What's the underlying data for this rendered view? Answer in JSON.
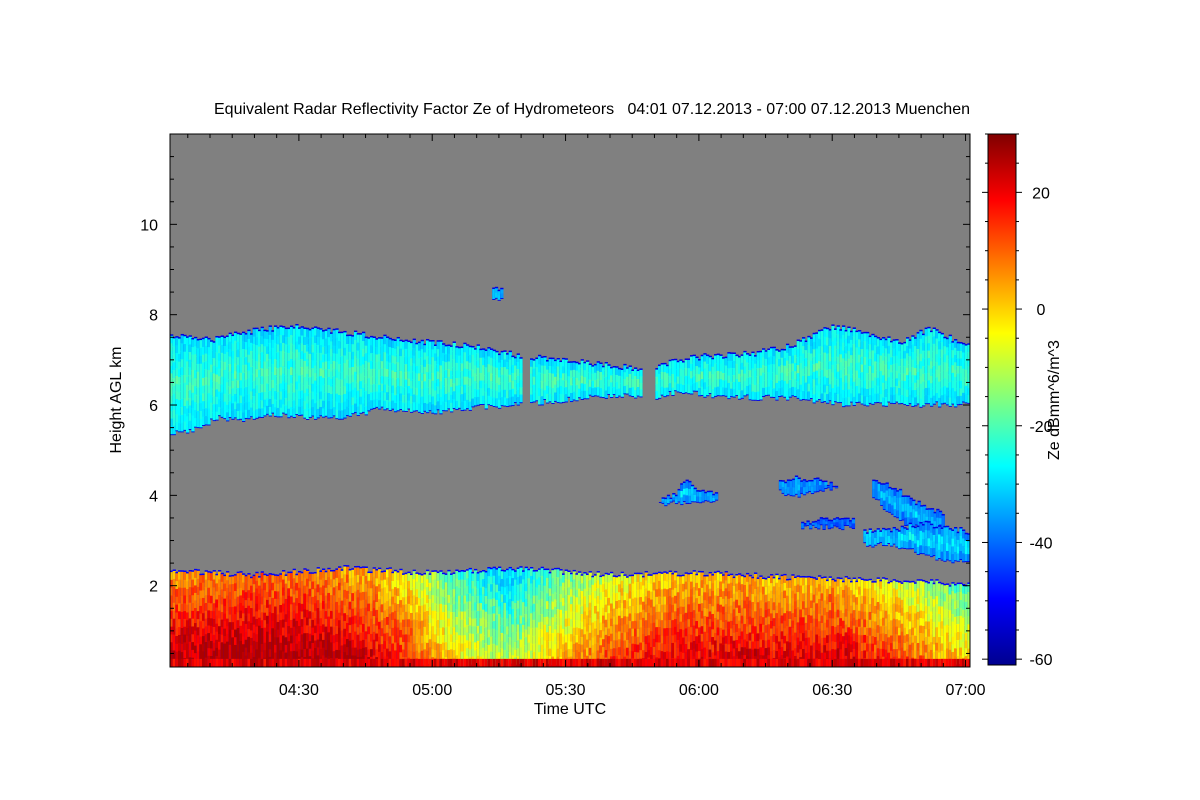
{
  "chart_data": {
    "type": "heatmap",
    "title": "Equivalent Radar Reflectivity Factor Ze of Hydrometeors   04:01 07.12.2013 - 07:00 07.12.2013 Muenchen",
    "xlabel": "Time UTC",
    "ylabel": "Height AGL km",
    "colorbar_label": "Ze dBmm^6/m^3",
    "background_color": "#808080",
    "colormap": "jet",
    "x_range_minutes_utc": [
      241,
      421
    ],
    "x_ticks": [
      {
        "value": 270,
        "label": "04:30"
      },
      {
        "value": 300,
        "label": "05:00"
      },
      {
        "value": 330,
        "label": "05:30"
      },
      {
        "value": 360,
        "label": "06:00"
      },
      {
        "value": 390,
        "label": "06:30"
      },
      {
        "value": 420,
        "label": "07:00"
      }
    ],
    "ylim": [
      0.2,
      12.0
    ],
    "y_ticks": [
      {
        "value": 2,
        "label": "2"
      },
      {
        "value": 4,
        "label": "4"
      },
      {
        "value": 6,
        "label": "6"
      },
      {
        "value": 8,
        "label": "8"
      },
      {
        "value": 10,
        "label": "10"
      }
    ],
    "color_range": [
      -61,
      30
    ],
    "colorbar_ticks": [
      {
        "value": 20,
        "label": "20"
      },
      {
        "value": 0,
        "label": "0"
      },
      {
        "value": -20,
        "label": "-20"
      },
      {
        "value": -40,
        "label": "-40"
      },
      {
        "value": -60,
        "label": "-60"
      }
    ],
    "layers": [
      {
        "name": "upper cloud layer",
        "start": 241,
        "end": 421,
        "top": [
          [
            241,
            7.55
          ],
          [
            250,
            7.45
          ],
          [
            262,
            7.7
          ],
          [
            270,
            7.75
          ],
          [
            278,
            7.65
          ],
          [
            290,
            7.5
          ],
          [
            300,
            7.4
          ],
          [
            310,
            7.3
          ],
          [
            320,
            7.1
          ],
          [
            330,
            7.0
          ],
          [
            340,
            6.9
          ],
          [
            348,
            6.8
          ],
          [
            355,
            7.0
          ],
          [
            362,
            7.1
          ],
          [
            372,
            7.15
          ],
          [
            380,
            7.3
          ],
          [
            390,
            7.75
          ],
          [
            398,
            7.6
          ],
          [
            405,
            7.4
          ],
          [
            412,
            7.7
          ],
          [
            421,
            7.3
          ]
        ],
        "bottom": [
          [
            241,
            5.35
          ],
          [
            246,
            5.45
          ],
          [
            252,
            5.7
          ],
          [
            258,
            5.65
          ],
          [
            264,
            5.8
          ],
          [
            272,
            5.7
          ],
          [
            280,
            5.7
          ],
          [
            288,
            5.9
          ],
          [
            295,
            5.85
          ],
          [
            302,
            5.85
          ],
          [
            310,
            5.95
          ],
          [
            320,
            6.0
          ],
          [
            330,
            6.1
          ],
          [
            340,
            6.2
          ],
          [
            350,
            6.15
          ],
          [
            356,
            6.3
          ],
          [
            362,
            6.2
          ],
          [
            372,
            6.15
          ],
          [
            382,
            6.15
          ],
          [
            392,
            6.0
          ],
          [
            402,
            6.0
          ],
          [
            412,
            6.0
          ],
          [
            421,
            6.0
          ]
        ],
        "gaps": [
          [
            347.5,
            350.0
          ],
          [
            320.0,
            322.0
          ]
        ],
        "ze": [
          -34,
          -20
        ]
      },
      {
        "name": "boundary layer",
        "start": 241,
        "end": 421,
        "top": [
          [
            241,
            2.35
          ],
          [
            260,
            2.25
          ],
          [
            280,
            2.4
          ],
          [
            300,
            2.3
          ],
          [
            320,
            2.4
          ],
          [
            340,
            2.25
          ],
          [
            360,
            2.3
          ],
          [
            380,
            2.2
          ],
          [
            400,
            2.15
          ],
          [
            421,
            2.05
          ]
        ],
        "bottom": [
          [
            241,
            0.2
          ],
          [
            421,
            0.2
          ]
        ],
        "ze": [
          -24,
          18
        ],
        "ze_profile": [
          [
            241,
            12
          ],
          [
            260,
            16
          ],
          [
            275,
            14
          ],
          [
            285,
            10
          ],
          [
            295,
            2
          ],
          [
            305,
            -14
          ],
          [
            312,
            -20
          ],
          [
            318,
            -24
          ],
          [
            324,
            -16
          ],
          [
            330,
            -10
          ],
          [
            340,
            0
          ],
          [
            350,
            6
          ],
          [
            360,
            8
          ],
          [
            370,
            9
          ],
          [
            380,
            8
          ],
          [
            390,
            10
          ],
          [
            400,
            4
          ],
          [
            410,
            -4
          ],
          [
            421,
            -14
          ]
        ]
      },
      {
        "name": "mid-level cloud 1",
        "start": 351,
        "end": 364,
        "top": [
          [
            351,
            3.9
          ],
          [
            355,
            4.05
          ],
          [
            357,
            4.35
          ],
          [
            360,
            4.1
          ],
          [
            364,
            4.05
          ]
        ],
        "bottom": [
          [
            351,
            3.8
          ],
          [
            364,
            3.85
          ]
        ],
        "ze": [
          -44,
          -28
        ]
      },
      {
        "name": "mid-level cloud 2",
        "start": 378,
        "end": 391,
        "top": [
          [
            378,
            4.3
          ],
          [
            382,
            4.4
          ],
          [
            386,
            4.35
          ],
          [
            391,
            4.25
          ]
        ],
        "bottom": [
          [
            378,
            4.1
          ],
          [
            382,
            3.95
          ],
          [
            386,
            4.05
          ],
          [
            391,
            4.15
          ]
        ],
        "ze": [
          -46,
          -32
        ]
      },
      {
        "name": "mid-level cloud 3",
        "start": 399,
        "end": 415,
        "top": [
          [
            399,
            4.3
          ],
          [
            404,
            4.2
          ],
          [
            408,
            3.9
          ],
          [
            412,
            3.7
          ],
          [
            415,
            3.6
          ]
        ],
        "bottom": [
          [
            399,
            4.0
          ],
          [
            404,
            3.5
          ],
          [
            408,
            3.3
          ],
          [
            412,
            3.2
          ],
          [
            415,
            3.15
          ]
        ],
        "ze": [
          -46,
          -30
        ]
      },
      {
        "name": "mid-level cloud 4",
        "start": 383,
        "end": 395,
        "top": [
          [
            383,
            3.4
          ],
          [
            389,
            3.5
          ],
          [
            395,
            3.45
          ]
        ],
        "bottom": [
          [
            383,
            3.25
          ],
          [
            389,
            3.3
          ],
          [
            395,
            3.25
          ]
        ],
        "ze": [
          -48,
          -36
        ]
      },
      {
        "name": "mid-level cloud 5",
        "start": 397,
        "end": 421,
        "top": [
          [
            397,
            3.2
          ],
          [
            404,
            3.25
          ],
          [
            410,
            3.4
          ],
          [
            416,
            3.3
          ],
          [
            421,
            3.2
          ]
        ],
        "bottom": [
          [
            397,
            2.9
          ],
          [
            404,
            2.9
          ],
          [
            410,
            2.7
          ],
          [
            416,
            2.55
          ],
          [
            421,
            2.5
          ]
        ],
        "ze": [
          -44,
          -26
        ]
      },
      {
        "name": "isolated echo",
        "start": 313.5,
        "end": 315.5,
        "top": [
          [
            313.5,
            8.6
          ],
          [
            315.5,
            8.6
          ]
        ],
        "bottom": [
          [
            313.5,
            8.3
          ],
          [
            315.5,
            8.3
          ]
        ],
        "ze": [
          -40,
          -30
        ]
      }
    ]
  }
}
